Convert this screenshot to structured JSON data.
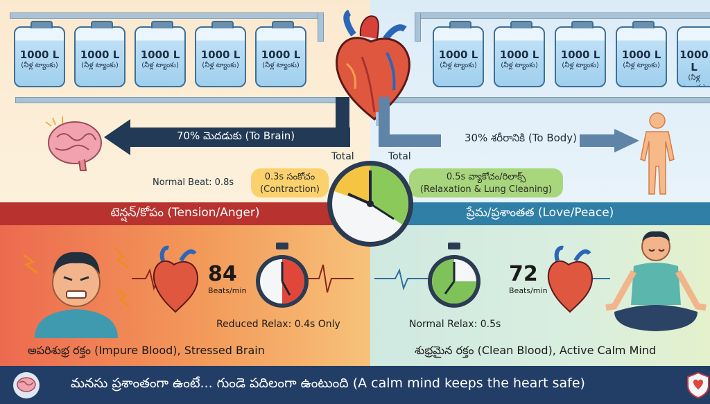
{
  "tanks": {
    "capacity": "1000 L",
    "telugu": "(నీళ్ల ట్యాంకు)",
    "left_count": 5,
    "right_count": 5
  },
  "flow": {
    "brain": "70% మెదడుకు (To Brain)",
    "body": "30% శరీరానికి (To Body)"
  },
  "cycle": {
    "total_left": "Total",
    "total_right": "Total",
    "normal_beat": "Normal Beat: 0.8s",
    "contraction_line1": "0.3s సంకోచం",
    "contraction_line2": "(Contraction)",
    "relax_line1": "0.5s వ్యాకోచం/రిలాక్స్",
    "relax_line2": "(Relaxation & Lung Cleaning)"
  },
  "tension": {
    "band": "టెన్షన్/కోపం (Tension/Anger)",
    "bpm": "84",
    "bpm_unit": "Beats/min",
    "relax": "Reduced Relax: 0.4s Only",
    "caption": "అపరిశుభ్ర రక్తం (Impure Blood), Stressed Brain"
  },
  "peace": {
    "band": "ప్రేమ/ప్రశాంతత (Love/Peace)",
    "bpm": "72",
    "bpm_unit": "Beats/min",
    "relax": "Normal Relax: 0.5s",
    "caption": "శుభ్రమైన రక్తం (Clean Blood), Active Calm Mind"
  },
  "footer": {
    "text": "మనసు ప్రశాంతంగా ఉంటే... గుండె పదిలంగా ఉంటుంది (A calm mind keeps the heart safe)"
  },
  "colors": {
    "tension_band": "#b8322f",
    "peace_band": "#2f7fa6",
    "footer": "#233e66",
    "contraction": "#fbd16e",
    "relaxation": "#a8d67c"
  }
}
